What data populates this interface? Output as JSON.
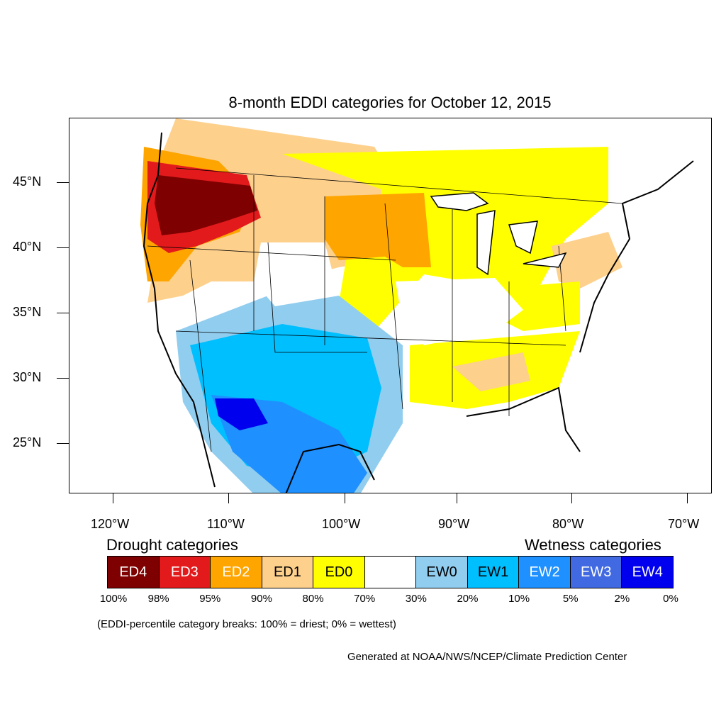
{
  "title": "8-month EDDI categories for October 12, 2015",
  "map": {
    "lat_labels": [
      "45°N",
      "40°N",
      "35°N",
      "30°N",
      "25°N"
    ],
    "lon_labels": [
      "120°W",
      "110°W",
      "100°W",
      "90°W",
      "80°W",
      "70°W"
    ],
    "regions": [
      {
        "name": "pacific-northwest",
        "category": "ED4"
      },
      {
        "name": "northern-plains",
        "category": "ED2"
      },
      {
        "name": "southwest-texas",
        "category": "EW2"
      },
      {
        "name": "southeast",
        "category": "ED0"
      }
    ]
  },
  "legend": {
    "drought_heading": "Drought categories",
    "wetness_heading": "Wetness categories",
    "categories": [
      {
        "label": "ED4",
        "color": "#7f0000",
        "text_color": "#ffffff"
      },
      {
        "label": "ED3",
        "color": "#e31a1c",
        "text_color": "#ffffff"
      },
      {
        "label": "ED2",
        "color": "#ffa500",
        "text_color": "#ffffff"
      },
      {
        "label": "ED1",
        "color": "#fdd08c",
        "text_color": "#000000"
      },
      {
        "label": "ED0",
        "color": "#ffff00",
        "text_color": "#000000"
      },
      {
        "label": "",
        "color": "#ffffff",
        "text_color": "#000000"
      },
      {
        "label": "EW0",
        "color": "#91cdef",
        "text_color": "#000000"
      },
      {
        "label": "EW1",
        "color": "#00bfff",
        "text_color": "#000000"
      },
      {
        "label": "EW2",
        "color": "#1e90ff",
        "text_color": "#ffffff"
      },
      {
        "label": "EW3",
        "color": "#4169e1",
        "text_color": "#ffffff"
      },
      {
        "label": "EW4",
        "color": "#0000ee",
        "text_color": "#ffffff"
      }
    ],
    "breaks": [
      "100%",
      "98%",
      "95%",
      "90%",
      "80%",
      "70%",
      "30%",
      "20%",
      "10%",
      "5%",
      "2%",
      "0%"
    ]
  },
  "note": "(EDDI-percentile category breaks: 100% = driest; 0% = wettest)",
  "credit": "Generated at NOAA/NWS/NCEP/Climate Prediction Center"
}
